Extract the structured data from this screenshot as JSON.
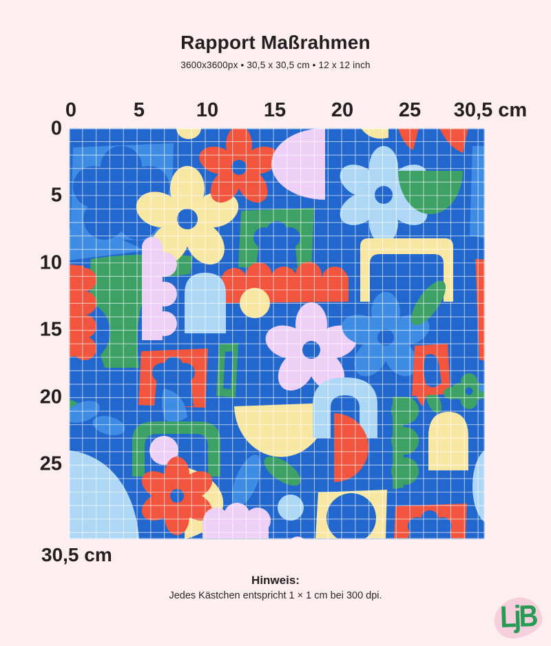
{
  "title": "Rapport Maßrahmen",
  "subtitle": "3600x3600px • 30,5 x 30,5 cm • 12 x 12 inch",
  "ruler": {
    "top_ticks": [
      "0",
      "5",
      "10",
      "15",
      "20",
      "25"
    ],
    "top_end_label": "30,5 cm",
    "left_ticks": [
      "0",
      "5",
      "10",
      "15",
      "20",
      "25"
    ],
    "bottom_left_label": "30,5 cm"
  },
  "note": {
    "heading": "Hinweis:",
    "body": "Jedes Kästchen entspricht 1 × 1 cm bei 300 dpi."
  },
  "logo": {
    "text": "LjB"
  },
  "pattern": {
    "description": "abstract flower and cut-out shape collage on blue measuring grid",
    "grid_cells_per_side": "30,5",
    "palette": {
      "background_blue": "#2267cd",
      "medium_blue": "#3f8ce4",
      "light_blue": "#aed7f6",
      "yellow": "#f8e7a3",
      "red_orange": "#f2553e",
      "green": "#3da065",
      "lilac": "#eed0f6",
      "grid_line": "#ffffff"
    }
  },
  "page_colors": {
    "background": "#fdeef0",
    "text": "#231f20",
    "logo_green": "#279a56",
    "logo_pink": "#f6cfdd"
  }
}
